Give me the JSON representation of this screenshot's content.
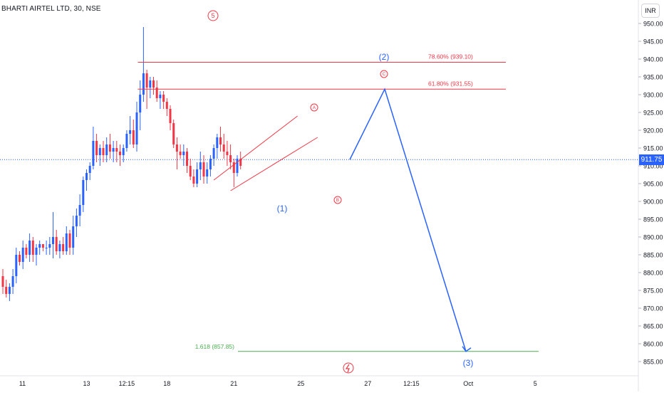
{
  "chart": {
    "title": "BHARTI AIRTEL LTD, 30, NSE",
    "currency": "INR",
    "last_price": "911.75"
  },
  "colors": {
    "up": "#2962ff",
    "down": "#f23645",
    "fib": "#f23645",
    "projection": "#2962ff",
    "target": "#4caf50",
    "axis_text": "#131722",
    "price_line": "#2962ff"
  },
  "chart_data": {
    "type": "candlestick",
    "y_ticks": [
      950,
      945,
      940,
      935,
      930,
      925,
      920,
      915,
      910,
      905,
      900,
      895,
      890,
      885,
      880,
      875,
      870,
      865,
      860,
      855
    ],
    "y_tick_labels": [
      "950.00",
      "945.00",
      "940.00",
      "935.00",
      "930.00",
      "925.00",
      "920.00",
      "915.00",
      "910.00",
      "905.00",
      "900.00",
      "895.00",
      "890.00",
      "885.00",
      "880.00",
      "875.00",
      "870.00",
      "865.00",
      "860.00",
      "855.00"
    ],
    "ylim": [
      852.3,
      953.5
    ],
    "x_labels": [
      {
        "label": "11",
        "bar": 5
      },
      {
        "label": "13",
        "bar": 25
      },
      {
        "label": "12:15",
        "bar": 37
      },
      {
        "label": "18",
        "bar": 49
      },
      {
        "label": "21",
        "bar": 69
      },
      {
        "label": "25",
        "bar": 89
      },
      {
        "label": "27",
        "bar": 109
      },
      {
        "label": "12:15",
        "bar": 122
      },
      {
        "label": "Oct",
        "bar": 139
      },
      {
        "label": "5",
        "bar": 159
      }
    ],
    "ohlc": [
      [
        879,
        881,
        874,
        876
      ],
      [
        876,
        878,
        873,
        874
      ],
      [
        874,
        877,
        872,
        876
      ],
      [
        876,
        881,
        874,
        879
      ],
      [
        879,
        887,
        877,
        885
      ],
      [
        885,
        886,
        882,
        883
      ],
      [
        883,
        889,
        881,
        887
      ],
      [
        887,
        888,
        884,
        885
      ],
      [
        885,
        891,
        883,
        889
      ],
      [
        889,
        890,
        883,
        885
      ],
      [
        885,
        888,
        882,
        887
      ],
      [
        887,
        889,
        885,
        888
      ],
      [
        888,
        888,
        886,
        887
      ],
      [
        887,
        889,
        885,
        887
      ],
      [
        887,
        890,
        885,
        888
      ],
      [
        888,
        897,
        884,
        890
      ],
      [
        890,
        892,
        885,
        886
      ],
      [
        886,
        889,
        884,
        888
      ],
      [
        888,
        890,
        885,
        886
      ],
      [
        886,
        893,
        885,
        891
      ],
      [
        891,
        892,
        885,
        887
      ],
      [
        887,
        896,
        885,
        893
      ],
      [
        893,
        898,
        890,
        896
      ],
      [
        896,
        902,
        893,
        899
      ],
      [
        899,
        907,
        897,
        906
      ],
      [
        906,
        909,
        903,
        908
      ],
      [
        908,
        911,
        906,
        910
      ],
      [
        910,
        921,
        909,
        917
      ],
      [
        917,
        919,
        911,
        913
      ],
      [
        913,
        916,
        910,
        915
      ],
      [
        915,
        917,
        911,
        913
      ],
      [
        913,
        918,
        911,
        916
      ],
      [
        916,
        919,
        912,
        914
      ],
      [
        914,
        917,
        911,
        915
      ],
      [
        915,
        917,
        911,
        914
      ],
      [
        914,
        916,
        910,
        913
      ],
      [
        913,
        916,
        911,
        915
      ],
      [
        915,
        920,
        914,
        919
      ],
      [
        919,
        924,
        916,
        920
      ],
      [
        920,
        923,
        915,
        916
      ],
      [
        916,
        928,
        914,
        925
      ],
      [
        925,
        934,
        920,
        930
      ],
      [
        930,
        949,
        928,
        936
      ],
      [
        936,
        937,
        926,
        932
      ],
      [
        932,
        935,
        929,
        934
      ],
      [
        934,
        935,
        930,
        932
      ],
      [
        932,
        934,
        928,
        929
      ],
      [
        929,
        931,
        926,
        930
      ],
      [
        930,
        931,
        926,
        928
      ],
      [
        928,
        929,
        924,
        926
      ],
      [
        926,
        927,
        920,
        922
      ],
      [
        922,
        923,
        915,
        916
      ],
      [
        916,
        918,
        909,
        914
      ],
      [
        914,
        916,
        912,
        913
      ],
      [
        913,
        916,
        910,
        914
      ],
      [
        914,
        915,
        908,
        910
      ],
      [
        910,
        912,
        906,
        907
      ],
      [
        907,
        909,
        904,
        905
      ],
      [
        905,
        911,
        904,
        909
      ],
      [
        909,
        914,
        906,
        911
      ],
      [
        911,
        913,
        905,
        907
      ],
      [
        907,
        911,
        905,
        909
      ],
      [
        909,
        913,
        907,
        912
      ],
      [
        912,
        916,
        910,
        915
      ],
      [
        915,
        919,
        912,
        918
      ],
      [
        918,
        921,
        914,
        916
      ],
      [
        916,
        919,
        912,
        914
      ],
      [
        914,
        917,
        910,
        913
      ],
      [
        913,
        916,
        909,
        911
      ],
      [
        911,
        912,
        904,
        908
      ],
      [
        908,
        913,
        907,
        912
      ],
      [
        912,
        914,
        909,
        910
      ]
    ],
    "fib_levels": [
      {
        "label": "78.60% (939.10)",
        "value": 939.1
      },
      {
        "label": "61.80% (931.55)",
        "value": 931.55
      }
    ],
    "target_level": {
      "label": "1.618 (857.85)",
      "value": 857.85
    },
    "wave_labels": {
      "w5": "5",
      "wA": "A",
      "wB": "B",
      "wC": "C",
      "w1": "(1)",
      "w2": "(2)",
      "w3": "(3)"
    },
    "projection_path": [
      [
        911.75,
        0
      ],
      [
        931.55,
        0
      ],
      [
        857.85,
        0
      ]
    ]
  }
}
